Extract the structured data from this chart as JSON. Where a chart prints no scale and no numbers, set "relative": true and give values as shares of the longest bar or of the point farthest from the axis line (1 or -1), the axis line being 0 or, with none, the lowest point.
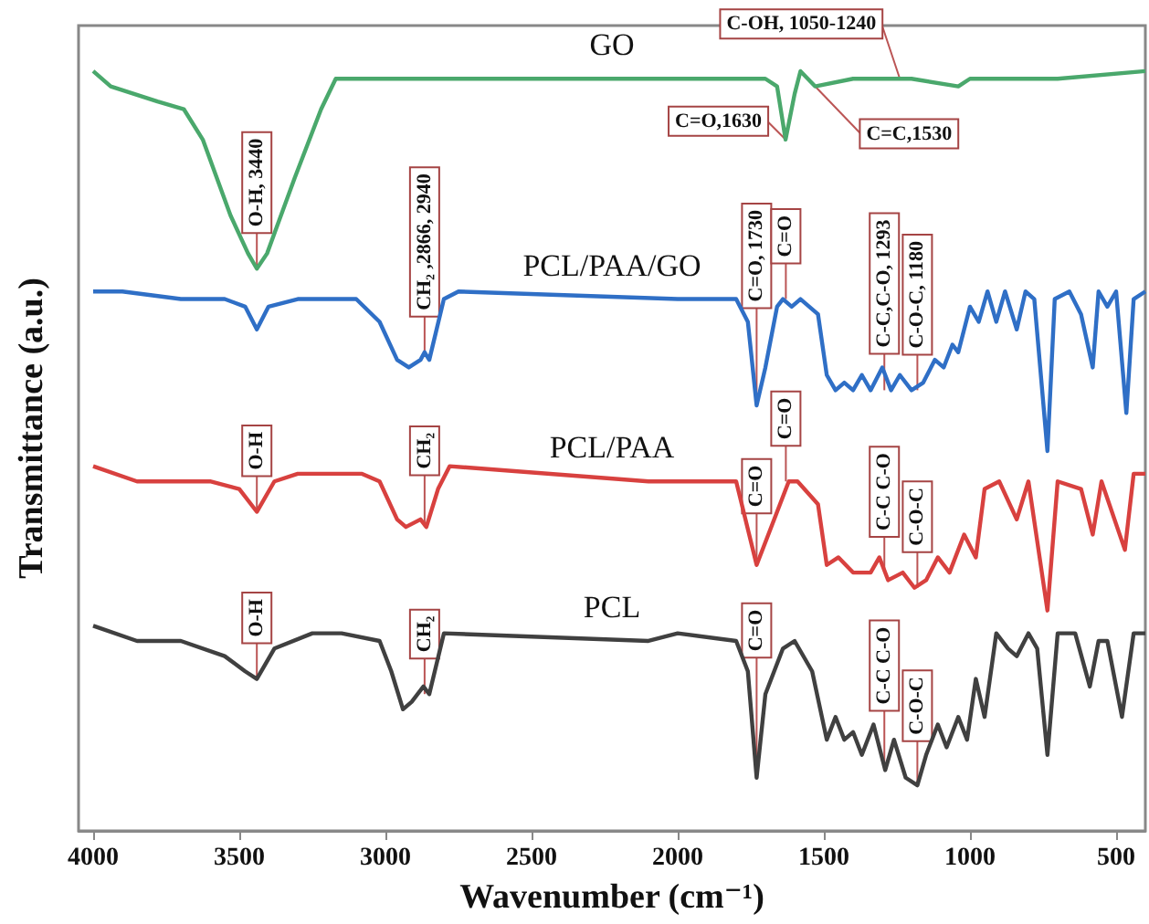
{
  "chart_data": {
    "type": "line",
    "relative": true,
    "xlabel": "Wavenumber (cm⁻¹)",
    "ylabel": "Transmittance (a.u.)",
    "xlim": [
      4050,
      400
    ],
    "xticks": [
      4000,
      3500,
      3000,
      2500,
      2000,
      1500,
      1000,
      500
    ],
    "tick_labels": "x",
    "grid": false,
    "legend": false,
    "marker": "none",
    "line_style": "solid",
    "series": [
      {
        "name": "GO",
        "color": "#4aa86c",
        "x": [
          4000,
          3940,
          3780,
          3690,
          3625,
          3530,
          3470,
          3440,
          3405,
          3310,
          3220,
          3170,
          3060,
          2500,
          2000,
          1700,
          1660,
          1631,
          1600,
          1580,
          1530,
          1400,
          1200,
          1040,
          1000,
          700,
          400
        ],
        "values": [
          1.0,
          0.98,
          0.96,
          0.95,
          0.91,
          0.81,
          0.76,
          0.74,
          0.76,
          0.86,
          0.95,
          0.99,
          0.99,
          0.99,
          0.99,
          0.99,
          0.98,
          0.91,
          0.97,
          1.0,
          0.98,
          0.99,
          0.99,
          0.98,
          0.99,
          0.99,
          1.0
        ]
      },
      {
        "name": "PCL/PAA/GO",
        "color": "#2f6fc6",
        "x": [
          4000,
          3900,
          3700,
          3550,
          3480,
          3440,
          3400,
          3300,
          3100,
          3020,
          2960,
          2920,
          2880,
          2866,
          2850,
          2800,
          2750,
          2000,
          1800,
          1760,
          1730,
          1700,
          1660,
          1640,
          1610,
          1580,
          1520,
          1490,
          1460,
          1430,
          1400,
          1370,
          1340,
          1300,
          1270,
          1240,
          1200,
          1160,
          1120,
          1090,
          1060,
          1040,
          1000,
          970,
          940,
          910,
          880,
          840,
          810,
          780,
          735,
          710,
          660,
          620,
          580,
          560,
          530,
          500,
          465,
          440,
          400
        ],
        "values": [
          0.71,
          0.71,
          0.7,
          0.7,
          0.69,
          0.66,
          0.69,
          0.7,
          0.7,
          0.67,
          0.62,
          0.61,
          0.62,
          0.63,
          0.62,
          0.7,
          0.71,
          0.7,
          0.7,
          0.67,
          0.56,
          0.61,
          0.69,
          0.7,
          0.69,
          0.7,
          0.68,
          0.6,
          0.58,
          0.59,
          0.58,
          0.6,
          0.58,
          0.61,
          0.58,
          0.6,
          0.58,
          0.59,
          0.62,
          0.61,
          0.64,
          0.63,
          0.69,
          0.67,
          0.71,
          0.67,
          0.71,
          0.66,
          0.71,
          0.7,
          0.5,
          0.7,
          0.71,
          0.68,
          0.61,
          0.71,
          0.69,
          0.71,
          0.55,
          0.7,
          0.71
        ]
      },
      {
        "name": "PCL/PAA",
        "color": "#d8413f",
        "x": [
          4000,
          3850,
          3750,
          3600,
          3500,
          3440,
          3380,
          3300,
          3080,
          3020,
          2960,
          2930,
          2880,
          2860,
          2820,
          2780,
          2100,
          2000,
          1800,
          1730,
          1680,
          1620,
          1590,
          1520,
          1490,
          1450,
          1400,
          1340,
          1310,
          1280,
          1230,
          1190,
          1150,
          1110,
          1070,
          1020,
          980,
          950,
          900,
          840,
          800,
          735,
          700,
          620,
          580,
          550,
          470,
          440,
          400
        ],
        "values": [
          0.48,
          0.46,
          0.46,
          0.46,
          0.45,
          0.42,
          0.46,
          0.47,
          0.47,
          0.46,
          0.41,
          0.4,
          0.41,
          0.4,
          0.45,
          0.48,
          0.46,
          0.46,
          0.46,
          0.35,
          0.4,
          0.46,
          0.46,
          0.43,
          0.35,
          0.36,
          0.34,
          0.34,
          0.36,
          0.33,
          0.34,
          0.32,
          0.33,
          0.36,
          0.34,
          0.39,
          0.36,
          0.45,
          0.46,
          0.41,
          0.46,
          0.29,
          0.46,
          0.45,
          0.39,
          0.46,
          0.37,
          0.47,
          0.47
        ]
      },
      {
        "name": "PCL",
        "color": "#404040",
        "x": [
          4000,
          3850,
          3700,
          3550,
          3480,
          3440,
          3380,
          3250,
          3150,
          3020,
          2980,
          2940,
          2910,
          2870,
          2850,
          2800,
          2100,
          2000,
          1800,
          1760,
          1730,
          1700,
          1640,
          1600,
          1540,
          1490,
          1460,
          1430,
          1400,
          1370,
          1330,
          1290,
          1260,
          1220,
          1180,
          1150,
          1110,
          1080,
          1040,
          1010,
          980,
          950,
          910,
          870,
          840,
          800,
          770,
          735,
          700,
          640,
          590,
          560,
          530,
          480,
          440,
          400
        ],
        "values": [
          0.27,
          0.25,
          0.25,
          0.23,
          0.21,
          0.2,
          0.24,
          0.26,
          0.26,
          0.25,
          0.21,
          0.16,
          0.17,
          0.19,
          0.18,
          0.26,
          0.25,
          0.26,
          0.25,
          0.21,
          0.07,
          0.18,
          0.24,
          0.25,
          0.21,
          0.12,
          0.15,
          0.12,
          0.13,
          0.1,
          0.14,
          0.08,
          0.12,
          0.07,
          0.06,
          0.1,
          0.14,
          0.11,
          0.15,
          0.12,
          0.2,
          0.15,
          0.26,
          0.24,
          0.23,
          0.26,
          0.24,
          0.1,
          0.26,
          0.26,
          0.19,
          0.25,
          0.25,
          0.15,
          0.26,
          0.26
        ]
      }
    ],
    "annotations": [
      {
        "text": "O-H, 3440",
        "x": 3440,
        "y": 0.74
      },
      {
        "text": "C=O,1630",
        "x": 1631,
        "y": 0.91
      },
      {
        "text": "C=C,1530",
        "x": 1530,
        "y": 0.98
      },
      {
        "text": "C-OH, 1050-1240",
        "x": 1240,
        "y": 0.99
      },
      {
        "text": "CH₂ ,2866, 2940",
        "x": 2866,
        "y": 0.63
      },
      {
        "text": "C=O, 1730",
        "x": 1730,
        "y": 0.56
      },
      {
        "text": "C=O",
        "x": 1630,
        "y": 0.7
      },
      {
        "text": "C-C,C-O, 1293",
        "x": 1293,
        "y": 0.58
      },
      {
        "text": "C-O-C, 1180",
        "x": 1180,
        "y": 0.58
      },
      {
        "text": "O-H",
        "x": 3440,
        "y": 0.42
      },
      {
        "text": "CH₂",
        "x": 2866,
        "y": 0.4
      },
      {
        "text": "C=O",
        "x": 1730,
        "y": 0.35
      },
      {
        "text": "C=O",
        "x": 1630,
        "y": 0.46
      },
      {
        "text": "C-C C-O",
        "x": 1293,
        "y": 0.34
      },
      {
        "text": "C-O-C",
        "x": 1180,
        "y": 0.32
      },
      {
        "text": "O-H",
        "x": 3440,
        "y": 0.2
      },
      {
        "text": "CH₂",
        "x": 2866,
        "y": 0.18
      },
      {
        "text": "C=O",
        "x": 1730,
        "y": 0.07
      },
      {
        "text": "C-C C-O",
        "x": 1293,
        "y": 0.08
      },
      {
        "text": "C-O-C",
        "x": 1180,
        "y": 0.06
      }
    ]
  }
}
